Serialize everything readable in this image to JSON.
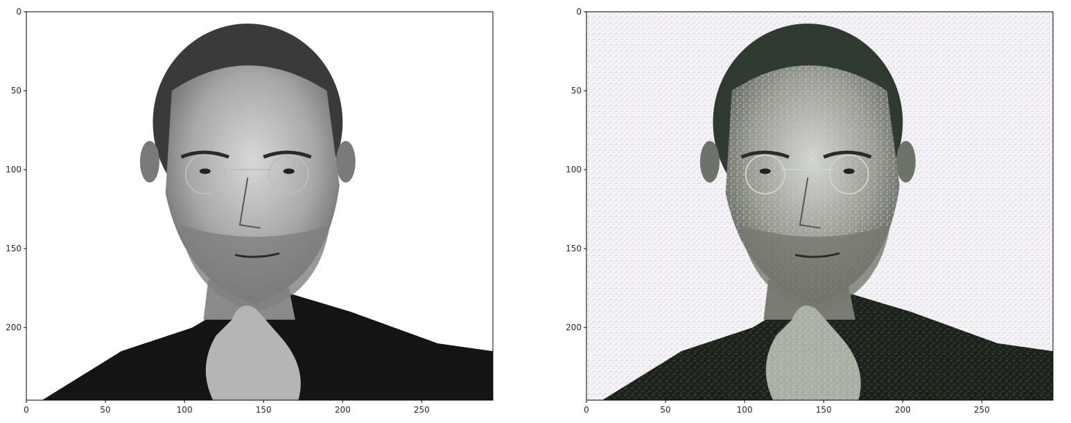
{
  "chart_data": [
    {
      "type": "image",
      "image_description": "grayscale portrait photo",
      "xlim": [
        0,
        295
      ],
      "ylim": [
        0,
        246
      ],
      "y_inverted": true,
      "xticks": [
        0,
        50,
        100,
        150,
        200,
        250
      ],
      "yticks": [
        0,
        50,
        100,
        150,
        200
      ],
      "xticklabels": [
        "0",
        "50",
        "100",
        "150",
        "200",
        "250"
      ],
      "yticklabels": [
        "0",
        "50",
        "100",
        "150",
        "200"
      ],
      "grid": false,
      "colors": {
        "background": "#ffffff",
        "dark": "#141414",
        "skin": "#9a9a9a"
      }
    },
    {
      "type": "image",
      "image_description": "stylized (noisy, colorful) version of the same portrait",
      "xlim": [
        0,
        295
      ],
      "ylim": [
        0,
        246
      ],
      "y_inverted": true,
      "xticks": [
        0,
        50,
        100,
        150,
        200,
        250
      ],
      "yticks": [
        0,
        50,
        100,
        150,
        200
      ],
      "xticklabels": [
        "0",
        "50",
        "100",
        "150",
        "200",
        "250"
      ],
      "yticklabels": [
        "0",
        "50",
        "100",
        "150",
        "200"
      ],
      "grid": false,
      "colors": {
        "background": "#f6f4f8",
        "dark": "#1e241c",
        "skin": "#8e8f88",
        "accent": "#9fb7c9"
      }
    }
  ]
}
